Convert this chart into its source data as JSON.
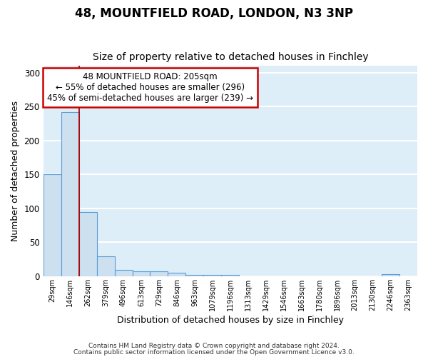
{
  "title1": "48, MOUNTFIELD ROAD, LONDON, N3 3NP",
  "title2": "Size of property relative to detached houses in Finchley",
  "xlabel": "Distribution of detached houses by size in Finchley",
  "ylabel": "Number of detached properties",
  "categories": [
    "29sqm",
    "146sqm",
    "262sqm",
    "379sqm",
    "496sqm",
    "613sqm",
    "729sqm",
    "846sqm",
    "963sqm",
    "1079sqm",
    "1196sqm",
    "1313sqm",
    "1429sqm",
    "1546sqm",
    "1663sqm",
    "1780sqm",
    "1896sqm",
    "2013sqm",
    "2130sqm",
    "2246sqm",
    "2363sqm"
  ],
  "values": [
    150,
    242,
    95,
    29,
    9,
    7,
    7,
    5,
    2,
    2,
    2,
    0,
    0,
    0,
    0,
    0,
    0,
    0,
    0,
    3,
    0
  ],
  "bar_color": "#cce0f0",
  "bar_edge_color": "#5b9bd5",
  "background_color": "#ddeef8",
  "grid_color": "#ffffff",
  "red_line_x": 1.51,
  "annotation_text": "48 MOUNTFIELD ROAD: 205sqm\n← 55% of detached houses are smaller (296)\n45% of semi-detached houses are larger (239) →",
  "annotation_box_color": "#ffffff",
  "annotation_box_edge_color": "#cc0000",
  "footer1": "Contains HM Land Registry data © Crown copyright and database right 2024.",
  "footer2": "Contains public sector information licensed under the Open Government Licence v3.0.",
  "ylim": [
    0,
    310
  ],
  "yticks": [
    0,
    50,
    100,
    150,
    200,
    250,
    300
  ],
  "title1_fontsize": 12,
  "title2_fontsize": 10,
  "xlabel_fontsize": 9,
  "ylabel_fontsize": 9,
  "annotation_fontsize": 8.5,
  "footer_fontsize": 6.5
}
